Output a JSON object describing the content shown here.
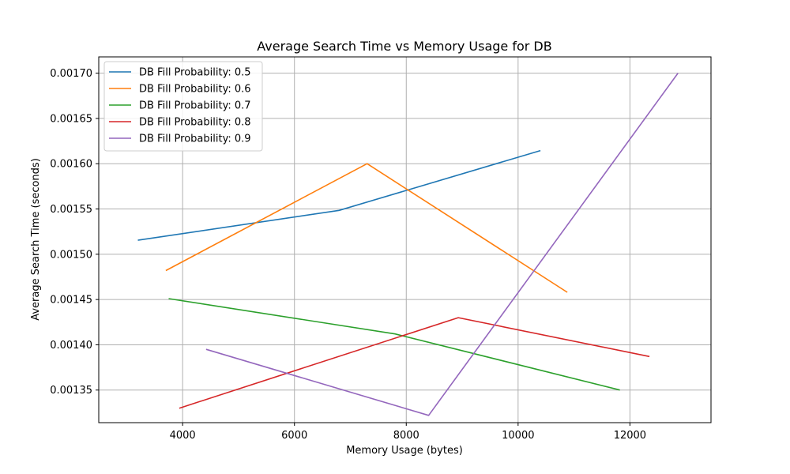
{
  "chart_data": {
    "type": "line",
    "title": "Average Search Time vs Memory Usage for DB",
    "xlabel": "Memory Usage (bytes)",
    "ylabel": "Average Search Time (seconds)",
    "xlim": [
      2500,
      13450
    ],
    "ylim": [
      0.001314,
      0.001718
    ],
    "xticks": [
      4000,
      6000,
      8000,
      10000,
      12000
    ],
    "xtick_labels": [
      "4000",
      "6000",
      "8000",
      "10000",
      "12000"
    ],
    "yticks": [
      0.00135,
      0.0014,
      0.00145,
      0.0015,
      0.00155,
      0.0016,
      0.00165,
      0.0017
    ],
    "ytick_labels": [
      "0.00135",
      "0.00140",
      "0.00145",
      "0.00150",
      "0.00155",
      "0.00160",
      "0.00165",
      "0.00170"
    ],
    "grid": true,
    "legend_position": "top-left",
    "series": [
      {
        "name": "DB Fill Probability: 0.5",
        "color": "#1f77b4",
        "x": [
          3200,
          6800,
          10400
        ],
        "y": [
          0.0015155,
          0.0015485,
          0.0016145
        ]
      },
      {
        "name": "DB Fill Probability: 0.6",
        "color": "#ff7f0e",
        "x": [
          3700,
          7300,
          10880
        ],
        "y": [
          0.001482,
          0.0016,
          0.001458
        ]
      },
      {
        "name": "DB Fill Probability: 0.7",
        "color": "#2ca02c",
        "x": [
          3750,
          7800,
          11820
        ],
        "y": [
          0.001451,
          0.001412,
          0.00135
        ]
      },
      {
        "name": "DB Fill Probability: 0.8",
        "color": "#d62728",
        "x": [
          3940,
          8930,
          12350
        ],
        "y": [
          0.00133,
          0.00143,
          0.001387
        ]
      },
      {
        "name": "DB Fill Probability: 0.9",
        "color": "#9467bd",
        "x": [
          4420,
          8400,
          12860
        ],
        "y": [
          0.001395,
          0.001322,
          0.0017
        ]
      }
    ]
  }
}
